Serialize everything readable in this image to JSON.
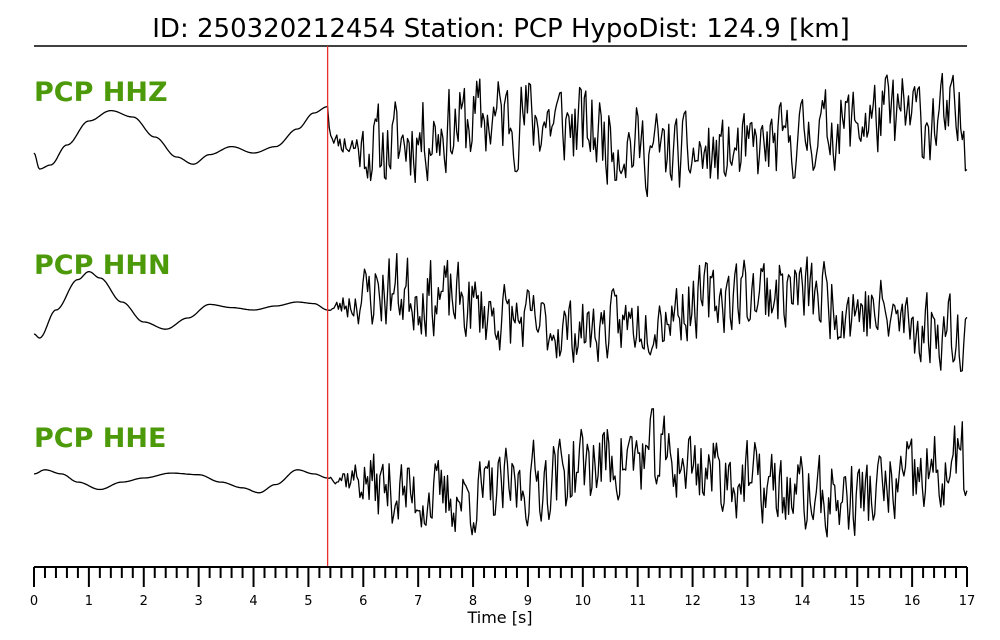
{
  "chart_data": {
    "type": "line",
    "title": "ID: 250320212454   Station: PCP   HypoDist:   124.9 [km]",
    "xlabel": "Time [s]",
    "xlim": [
      0,
      17
    ],
    "x_ticks": [
      "0",
      "1",
      "2",
      "3",
      "4",
      "5",
      "6",
      "7",
      "8",
      "9",
      "10",
      "11",
      "12",
      "13",
      "14",
      "15",
      "16",
      "17"
    ],
    "minor_tick_step": 0.2,
    "pick_time": 5.35,
    "pick_color": "#e8302a",
    "label_color": "#4c9a0a",
    "trace_color": "#000000",
    "grid": false,
    "series": [
      {
        "name": "PCP HHZ",
        "pre_event": [
          [
            0,
            -0.2
          ],
          [
            0.1,
            -0.4
          ],
          [
            0.3,
            -0.35
          ],
          [
            0.6,
            -0.1
          ],
          [
            1.0,
            0.2
          ],
          [
            1.4,
            0.33
          ],
          [
            1.8,
            0.25
          ],
          [
            2.2,
            0.0
          ],
          [
            2.6,
            -0.25
          ],
          [
            2.9,
            -0.34
          ],
          [
            3.2,
            -0.22
          ],
          [
            3.6,
            -0.12
          ],
          [
            4.0,
            -0.2
          ],
          [
            4.4,
            -0.12
          ],
          [
            4.8,
            0.1
          ],
          [
            5.1,
            0.3
          ],
          [
            5.35,
            0.38
          ]
        ],
        "post_event_amplitude": 0.85,
        "post_event_seed": 11
      },
      {
        "name": "PCP HHN",
        "pre_event": [
          [
            0,
            -0.3
          ],
          [
            0.1,
            -0.35
          ],
          [
            0.4,
            0.0
          ],
          [
            0.8,
            0.38
          ],
          [
            1.0,
            0.48
          ],
          [
            1.2,
            0.4
          ],
          [
            1.6,
            0.1
          ],
          [
            2.0,
            -0.15
          ],
          [
            2.4,
            -0.24
          ],
          [
            2.8,
            -0.1
          ],
          [
            3.2,
            0.07
          ],
          [
            3.6,
            0.03
          ],
          [
            4.0,
            0.0
          ],
          [
            4.4,
            0.05
          ],
          [
            4.8,
            0.1
          ],
          [
            5.1,
            0.08
          ],
          [
            5.35,
            0.0
          ]
        ],
        "post_event_amplitude": 0.75,
        "post_event_seed": 23
      },
      {
        "name": "PCP HHE",
        "pre_event": [
          [
            0,
            0.05
          ],
          [
            0.2,
            0.1
          ],
          [
            0.5,
            0.05
          ],
          [
            0.8,
            -0.05
          ],
          [
            1.2,
            -0.14
          ],
          [
            1.6,
            -0.05
          ],
          [
            2.0,
            0.0
          ],
          [
            2.5,
            0.06
          ],
          [
            3.0,
            0.04
          ],
          [
            3.4,
            -0.05
          ],
          [
            3.8,
            -0.12
          ],
          [
            4.1,
            -0.18
          ],
          [
            4.4,
            -0.08
          ],
          [
            4.8,
            0.1
          ],
          [
            5.1,
            0.05
          ],
          [
            5.35,
            0.0
          ]
        ],
        "post_event_amplitude": 0.8,
        "post_event_seed": 37
      }
    ]
  }
}
